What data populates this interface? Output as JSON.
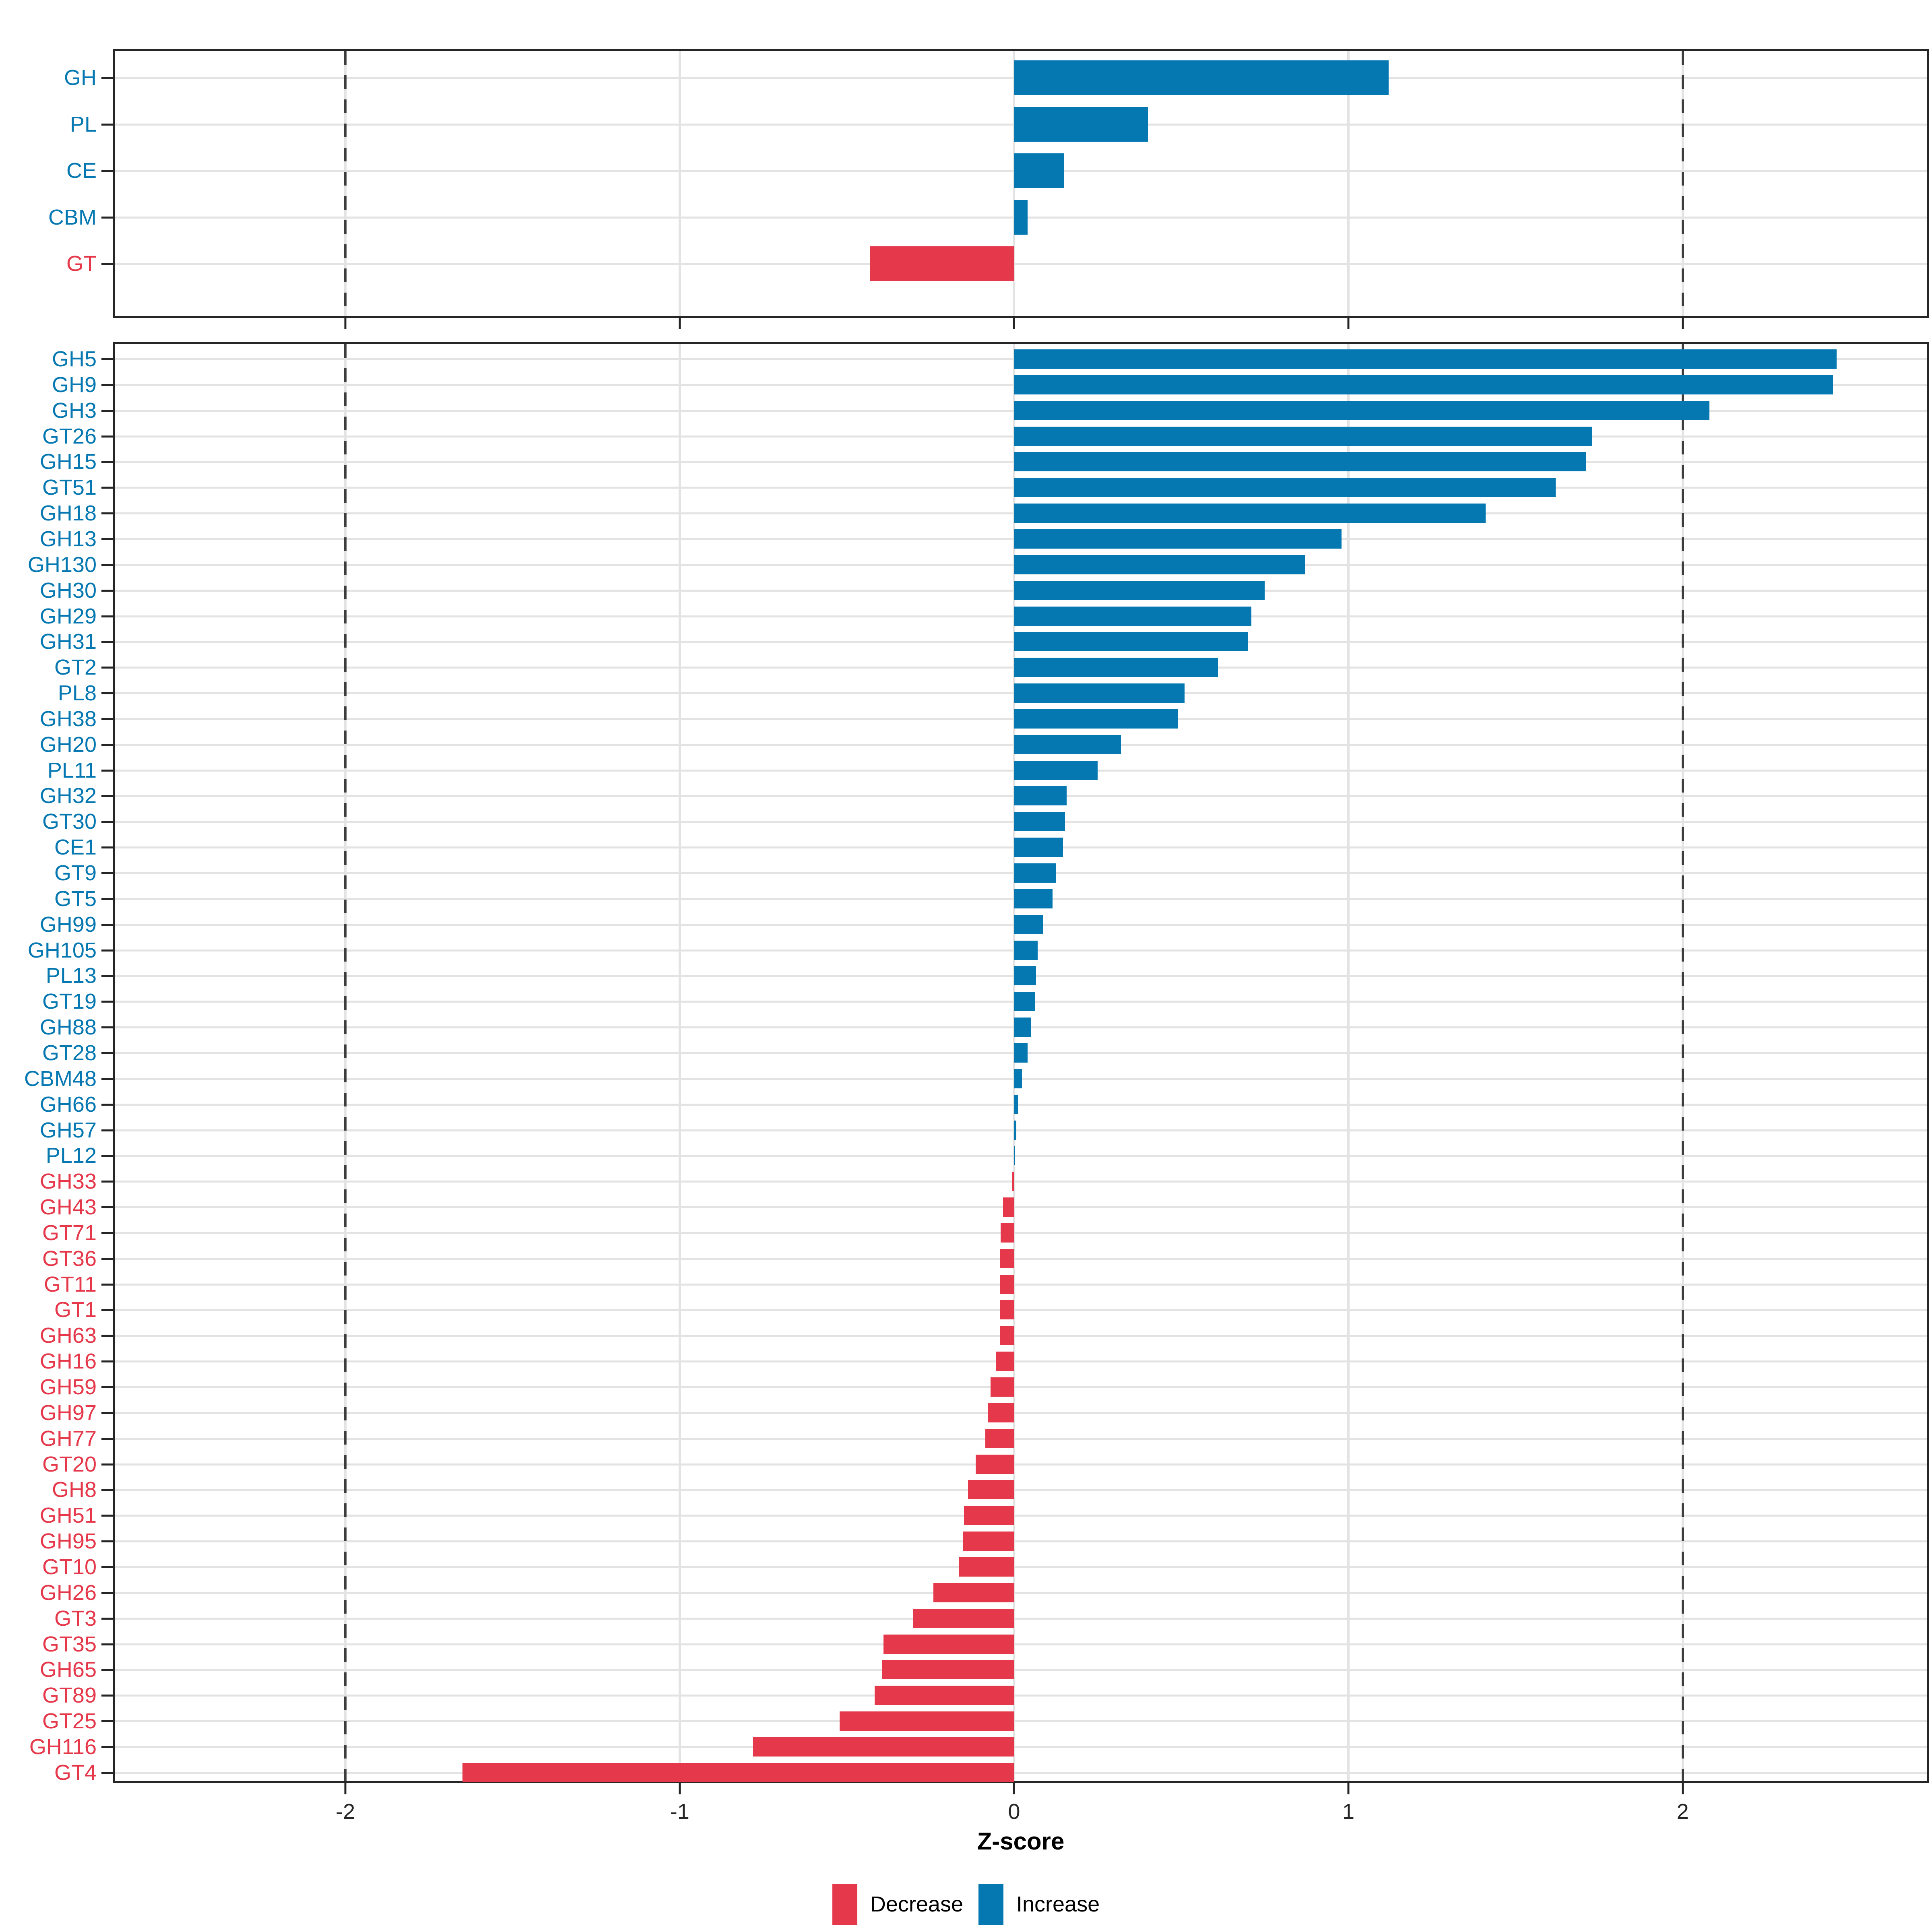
{
  "colors": {
    "increase": "#0578B2",
    "decrease": "#E5384A",
    "grid": "#e3e3e3",
    "dash_guide": "#3d3d3d",
    "axis": "#262626"
  },
  "axis": {
    "label": "Z-score",
    "xmin": -2.69,
    "xmax": 2.73,
    "ticks": [
      -2,
      -1,
      0,
      1,
      2
    ],
    "tick_labels": [
      "-2",
      "-1",
      "0",
      "1",
      "2"
    ],
    "dashed_guides": [
      -2,
      2
    ]
  },
  "legend": {
    "items": [
      {
        "label": "Decrease",
        "color_key": "decrease"
      },
      {
        "label": "Increase",
        "color_key": "increase"
      }
    ]
  },
  "chart_data": [
    {
      "type": "bar",
      "orientation": "horizontal",
      "panel": "top",
      "xlabel": "Z-score",
      "xlim": [
        -2.69,
        2.73
      ],
      "grid": true,
      "categories": [
        "GH",
        "PL",
        "CE",
        "CBM",
        "GT"
      ],
      "values": [
        1.12,
        0.4,
        0.15,
        0.04,
        -0.43
      ]
    },
    {
      "type": "bar",
      "orientation": "horizontal",
      "panel": "bottom",
      "xlabel": "Z-score",
      "xlim": [
        -2.69,
        2.73
      ],
      "grid": true,
      "categories": [
        "GH5",
        "GH9",
        "GH3",
        "GT26",
        "GH15",
        "GT51",
        "GH18",
        "GH13",
        "GH130",
        "GH30",
        "GH29",
        "GH31",
        "GT2",
        "PL8",
        "GH38",
        "GH20",
        "PL11",
        "GH32",
        "GT30",
        "CE1",
        "GT9",
        "GT5",
        "GH99",
        "GH105",
        "PL13",
        "GT19",
        "GH88",
        "GT28",
        "CBM48",
        "GH66",
        "GH57",
        "PL12",
        "GH33",
        "GH43",
        "GT71",
        "GT36",
        "GT11",
        "GT1",
        "GH63",
        "GH16",
        "GH59",
        "GH97",
        "GH77",
        "GT20",
        "GH8",
        "GH51",
        "GH95",
        "GT10",
        "GH26",
        "GT3",
        "GT35",
        "GH65",
        "GT89",
        "GT25",
        "GH116",
        "GT4"
      ],
      "values": [
        2.46,
        2.45,
        2.08,
        1.73,
        1.71,
        1.62,
        1.41,
        0.98,
        0.87,
        0.75,
        0.71,
        0.7,
        0.61,
        0.51,
        0.49,
        0.32,
        0.25,
        0.157,
        0.152,
        0.146,
        0.125,
        0.115,
        0.088,
        0.07,
        0.066,
        0.063,
        0.05,
        0.04,
        0.024,
        0.012,
        0.007,
        0.003,
        -0.005,
        -0.033,
        -0.04,
        -0.041,
        -0.041,
        -0.042,
        -0.043,
        -0.053,
        -0.07,
        -0.078,
        -0.086,
        -0.115,
        -0.138,
        -0.15,
        -0.152,
        -0.164,
        -0.241,
        -0.303,
        -0.39,
        -0.395,
        -0.417,
        -0.522,
        -0.78,
        -1.65
      ]
    }
  ]
}
